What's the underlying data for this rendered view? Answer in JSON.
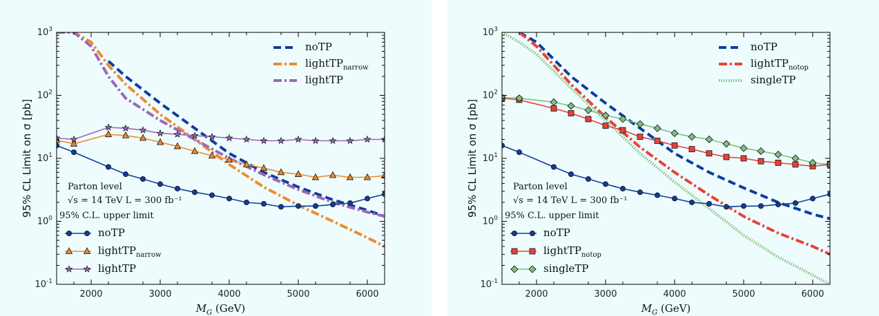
{
  "chart_data": [
    {
      "type": "line",
      "xscale": "linear",
      "yscale": "log",
      "xlabel": "M_G (GeV)",
      "ylabel": "95% CL Limit on σ [pb]",
      "xlim": [
        1500,
        6250
      ],
      "ylim": [
        0.1,
        1000
      ],
      "xticks": [
        2000,
        3000,
        4000,
        5000,
        6000
      ],
      "yticks": [
        0.1,
        1,
        10,
        100,
        1000
      ],
      "grid": false,
      "background": "#eefcfd",
      "annotations": [
        "Parton level",
        "√s = 14 TeV   L = 300 fb⁻¹",
        "95% C.L. upper limit"
      ],
      "legends": [
        {
          "position": "top-right",
          "entries": [
            "noTP",
            "lightTP_narrow",
            "lightTP"
          ]
        },
        {
          "position": "bottom-left",
          "entries": [
            "noTP",
            "lightTP_narrow",
            "lightTP"
          ]
        }
      ],
      "series": [
        {
          "name": "noTP",
          "role": "theory",
          "color": "#0f3d9e",
          "style": "dashed",
          "x": [
            2250,
            2500,
            3000,
            3500,
            4000,
            4500,
            5000,
            5500,
            6000,
            6250
          ],
          "y": [
            350,
            200,
            75,
            30,
            12,
            6,
            3.5,
            2.2,
            1.5,
            1.2
          ]
        },
        {
          "name": "lightTP_narrow",
          "role": "theory",
          "color": "#f08a2a",
          "style": "dashdot",
          "x": [
            1500,
            1750,
            2000,
            2250,
            2500,
            3000,
            3500,
            4000,
            4500,
            5000,
            5500,
            6000,
            6250
          ],
          "y": [
            1000,
            1000,
            700,
            300,
            150,
            50,
            20,
            8,
            3.5,
            1.8,
            1.0,
            0.55,
            0.4
          ]
        },
        {
          "name": "lightTP",
          "role": "theory",
          "color": "#9b67b8",
          "style": "dashdot",
          "x": [
            1500,
            1750,
            2000,
            2250,
            2500,
            3000,
            3500,
            4000,
            4500,
            5000,
            5500,
            6000,
            6250
          ],
          "y": [
            1000,
            1000,
            600,
            200,
            90,
            40,
            20,
            10,
            5.5,
            3.2,
            2.0,
            1.4,
            1.2
          ]
        },
        {
          "name": "noTP",
          "role": "limit",
          "color": "#0f3d9e",
          "marker": "circle",
          "x": [
            1500,
            1750,
            2250,
            2500,
            2750,
            3000,
            3250,
            3500,
            3750,
            4000,
            4250,
            4500,
            4750,
            5000,
            5250,
            5500,
            5750,
            6000,
            6250
          ],
          "y": [
            16,
            12.5,
            7.3,
            5.6,
            4.7,
            3.9,
            3.3,
            2.9,
            2.6,
            2.3,
            2.0,
            1.9,
            1.7,
            1.75,
            1.75,
            1.85,
            1.95,
            2.3,
            2.7
          ]
        },
        {
          "name": "lightTP_narrow",
          "role": "limit",
          "color": "#f08a2a",
          "marker": "triangle",
          "x": [
            1500,
            1750,
            2250,
            2500,
            2750,
            3000,
            3250,
            3500,
            3750,
            4000,
            4250,
            4500,
            4750,
            5000,
            5250,
            5500,
            5750,
            6000,
            6250
          ],
          "y": [
            19.5,
            17,
            24,
            23,
            21,
            18,
            15.5,
            13,
            11,
            9.5,
            8,
            7,
            6,
            5.6,
            5,
            5.4,
            5,
            5,
            5.3
          ]
        },
        {
          "name": "lightTP",
          "role": "limit",
          "color": "#9b67b8",
          "marker": "star",
          "x": [
            1500,
            1750,
            2250,
            2500,
            2750,
            3000,
            3250,
            3500,
            3750,
            4000,
            4250,
            4500,
            4750,
            5000,
            5250,
            5500,
            5750,
            6000,
            6250
          ],
          "y": [
            21,
            20,
            31,
            30,
            28,
            25,
            24,
            23,
            22,
            21,
            20,
            19,
            19,
            20,
            19,
            19,
            19,
            20,
            20
          ]
        }
      ]
    },
    {
      "type": "line",
      "xscale": "linear",
      "yscale": "log",
      "xlabel": "M_G (GeV)",
      "ylabel": "95% CL Limit on σ [pb]",
      "xlim": [
        1500,
        6250
      ],
      "ylim": [
        0.1,
        1000
      ],
      "xticks": [
        2000,
        3000,
        4000,
        5000,
        6000
      ],
      "yticks": [
        0.1,
        1,
        10,
        100,
        1000
      ],
      "grid": false,
      "background": "#eefcfd",
      "annotations": [
        "Parton level",
        "√s = 14 TeV   L = 300 fb⁻¹",
        "95% C.L. upper limit"
      ],
      "legends": [
        {
          "position": "top-right",
          "entries": [
            "noTP",
            "lightTP_notop",
            "singleTP"
          ]
        },
        {
          "position": "bottom-left",
          "entries": [
            "noTP",
            "lightTP_notop",
            "singleTP"
          ]
        }
      ],
      "series": [
        {
          "name": "noTP",
          "role": "theory",
          "color": "#0f3d9e",
          "style": "dashed",
          "x": [
            1750,
            2000,
            2500,
            3000,
            3500,
            4000,
            4500,
            5000,
            5500,
            6000,
            6250
          ],
          "y": [
            1000,
            700,
            200,
            75,
            30,
            12,
            6,
            3.4,
            2.0,
            1.3,
            1.1
          ]
        },
        {
          "name": "lightTP_notop",
          "role": "theory",
          "color": "#e8413a",
          "style": "dashdot",
          "x": [
            1750,
            2000,
            2500,
            3000,
            3500,
            4000,
            4500,
            5000,
            5500,
            6000,
            6250
          ],
          "y": [
            1000,
            600,
            150,
            45,
            15,
            6,
            2.6,
            1.2,
            0.65,
            0.4,
            0.3
          ]
        },
        {
          "name": "singleTP",
          "role": "theory",
          "color": "#7fbf7f",
          "style": "dotted",
          "x": [
            1500,
            1750,
            2000,
            2500,
            3000,
            3500,
            4000,
            4500,
            5000,
            5500,
            6000,
            6250
          ],
          "y": [
            1000,
            700,
            450,
            130,
            40,
            12,
            4.2,
            1.6,
            0.6,
            0.27,
            0.14,
            0.1
          ]
        },
        {
          "name": "noTP",
          "role": "limit",
          "color": "#0f3d9e",
          "marker": "circle",
          "x": [
            1500,
            1750,
            2250,
            2500,
            2750,
            3000,
            3250,
            3500,
            3750,
            4000,
            4250,
            4500,
            4750,
            5000,
            5250,
            5500,
            5750,
            6000,
            6250
          ],
          "y": [
            16,
            12.5,
            7.3,
            5.6,
            4.7,
            3.9,
            3.3,
            2.9,
            2.6,
            2.3,
            2.0,
            1.9,
            1.7,
            1.75,
            1.75,
            1.85,
            1.95,
            2.3,
            2.7
          ]
        },
        {
          "name": "lightTP_notop",
          "role": "limit",
          "color": "#e8413a",
          "marker": "square",
          "x": [
            1500,
            1750,
            2250,
            2500,
            2750,
            3000,
            3250,
            3500,
            3750,
            4000,
            4250,
            4500,
            4750,
            5000,
            5250,
            5500,
            5750,
            6000,
            6250
          ],
          "y": [
            90,
            85,
            62,
            52,
            42,
            33,
            28,
            22,
            19,
            16,
            14,
            12,
            10.5,
            10,
            9,
            8.5,
            8,
            7.5,
            8
          ]
        },
        {
          "name": "singleTP",
          "role": "limit",
          "color": "#7fbf7f",
          "marker": "diamond",
          "x": [
            1500,
            1750,
            2250,
            2500,
            2750,
            3000,
            3250,
            3500,
            3750,
            4000,
            4250,
            4500,
            4750,
            5000,
            5250,
            5500,
            5750,
            6000,
            6250
          ],
          "y": [
            92,
            90,
            78,
            68,
            58,
            48,
            42,
            35,
            30,
            25,
            22,
            20,
            17,
            14.5,
            13,
            11.5,
            10,
            8.5,
            8
          ]
        }
      ]
    }
  ]
}
